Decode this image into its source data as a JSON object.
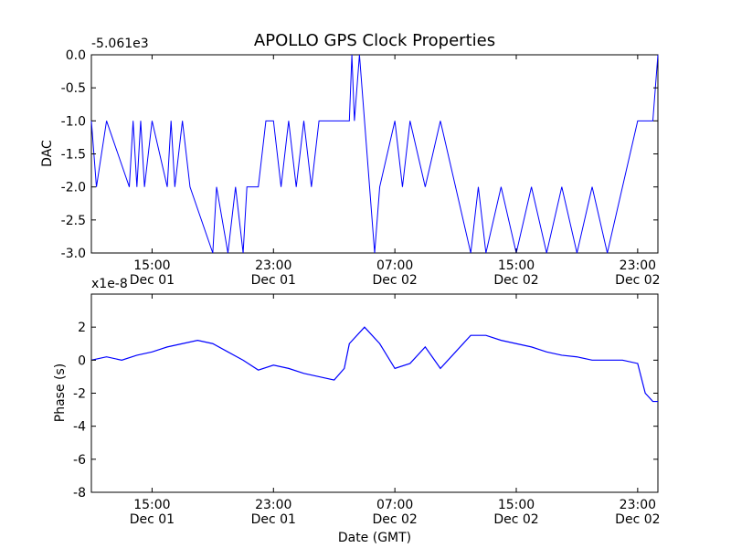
{
  "chart_data": {
    "title": "APOLLO GPS Clock Properties",
    "xlabel": "Date (GMT)",
    "x_range": [
      "2011-12-01 11:00",
      "2011-12-03 00:20"
    ],
    "x_ticks": [
      {
        "t": "2011-12-01 15:00",
        "label_time": "15:00",
        "label_date": "Dec 01"
      },
      {
        "t": "2011-12-01 23:00",
        "label_time": "23:00",
        "label_date": "Dec 01"
      },
      {
        "t": "2011-12-02 07:00",
        "label_time": "07:00",
        "label_date": "Dec 02"
      },
      {
        "t": "2011-12-02 15:00",
        "label_time": "15:00",
        "label_date": "Dec 02"
      },
      {
        "t": "2011-12-02 23:00",
        "label_time": "23:00",
        "label_date": "Dec 02"
      }
    ],
    "panels": [
      {
        "type": "line",
        "ylabel": "DAC",
        "offset_label": "-5.061e3",
        "ylim": [
          -3.0,
          0.0
        ],
        "yticks": [
          0.0,
          -0.5,
          -1.0,
          -1.5,
          -2.0,
          -2.5,
          -3.0
        ],
        "ytick_labels": [
          "0.0",
          "-0.5",
          "-1.0",
          "-1.5",
          "-2.0",
          "-2.5",
          "-3.0"
        ],
        "series": [
          {
            "color": "#0000ff",
            "points": [
              [
                "2011-12-01 11:00",
                -1.0
              ],
              [
                "2011-12-01 11:20",
                -2.0
              ],
              [
                "2011-12-01 12:00",
                -1.0
              ],
              [
                "2011-12-01 13:30",
                -2.0
              ],
              [
                "2011-12-01 13:45",
                -1.0
              ],
              [
                "2011-12-01 14:00",
                -2.0
              ],
              [
                "2011-12-01 14:15",
                -1.0
              ],
              [
                "2011-12-01 14:30",
                -2.0
              ],
              [
                "2011-12-01 15:00",
                -1.0
              ],
              [
                "2011-12-01 16:00",
                -2.0
              ],
              [
                "2011-12-01 16:15",
                -1.0
              ],
              [
                "2011-12-01 16:30",
                -2.0
              ],
              [
                "2011-12-01 17:00",
                -1.0
              ],
              [
                "2011-12-01 17:30",
                -2.0
              ],
              [
                "2011-12-01 19:00",
                -3.0
              ],
              [
                "2011-12-01 19:15",
                -2.0
              ],
              [
                "2011-12-01 20:00",
                -3.0
              ],
              [
                "2011-12-01 20:30",
                -2.0
              ],
              [
                "2011-12-01 21:00",
                -3.0
              ],
              [
                "2011-12-01 21:15",
                -2.0
              ],
              [
                "2011-12-01 22:00",
                -2.0
              ],
              [
                "2011-12-01 22:30",
                -1.0
              ],
              [
                "2011-12-01 23:00",
                -1.0
              ],
              [
                "2011-12-01 23:30",
                -2.0
              ],
              [
                "2011-12-02 00:00",
                -1.0
              ],
              [
                "2011-12-02 00:30",
                -2.0
              ],
              [
                "2011-12-02 01:00",
                -1.0
              ],
              [
                "2011-12-02 01:30",
                -2.0
              ],
              [
                "2011-12-02 02:00",
                -1.0
              ],
              [
                "2011-12-02 03:00",
                -1.0
              ],
              [
                "2011-12-02 04:00",
                -1.0
              ],
              [
                "2011-12-02 04:10",
                0.0
              ],
              [
                "2011-12-02 04:20",
                -1.0
              ],
              [
                "2011-12-02 04:40",
                0.0
              ],
              [
                "2011-12-02 05:00",
                -1.0
              ],
              [
                "2011-12-02 05:20",
                -2.0
              ],
              [
                "2011-12-02 05:40",
                -3.0
              ],
              [
                "2011-12-02 06:00",
                -2.0
              ],
              [
                "2011-12-02 07:00",
                -1.0
              ],
              [
                "2011-12-02 07:30",
                -2.0
              ],
              [
                "2011-12-02 08:00",
                -1.0
              ],
              [
                "2011-12-02 09:00",
                -2.0
              ],
              [
                "2011-12-02 10:00",
                -1.0
              ],
              [
                "2011-12-02 11:00",
                -2.0
              ],
              [
                "2011-12-02 12:00",
                -3.0
              ],
              [
                "2011-12-02 12:30",
                -2.0
              ],
              [
                "2011-12-02 13:00",
                -3.0
              ],
              [
                "2011-12-02 14:00",
                -2.0
              ],
              [
                "2011-12-02 15:00",
                -3.0
              ],
              [
                "2011-12-02 16:00",
                -2.0
              ],
              [
                "2011-12-02 17:00",
                -3.0
              ],
              [
                "2011-12-02 18:00",
                -2.0
              ],
              [
                "2011-12-02 19:00",
                -3.0
              ],
              [
                "2011-12-02 20:00",
                -2.0
              ],
              [
                "2011-12-02 21:00",
                -3.0
              ],
              [
                "2011-12-02 22:00",
                -2.0
              ],
              [
                "2011-12-02 23:00",
                -1.0
              ],
              [
                "2011-12-03 00:00",
                -1.0
              ],
              [
                "2011-12-03 00:20",
                0.0
              ]
            ]
          }
        ]
      },
      {
        "type": "line",
        "ylabel": "Phase (s)",
        "offset_label": "x1e-8",
        "ylim": [
          -8,
          4
        ],
        "yticks": [
          2,
          0,
          -2,
          -4,
          -6,
          -8
        ],
        "ytick_labels": [
          "2",
          "0",
          "-2",
          "-4",
          "-6",
          "-8"
        ],
        "series": [
          {
            "color": "#0000ff",
            "points": [
              [
                "2011-12-01 11:00",
                0.0
              ],
              [
                "2011-12-01 12:00",
                0.2
              ],
              [
                "2011-12-01 13:00",
                0.0
              ],
              [
                "2011-12-01 14:00",
                0.3
              ],
              [
                "2011-12-01 15:00",
                0.5
              ],
              [
                "2011-12-01 16:00",
                0.8
              ],
              [
                "2011-12-01 17:00",
                1.0
              ],
              [
                "2011-12-01 18:00",
                1.2
              ],
              [
                "2011-12-01 19:00",
                1.0
              ],
              [
                "2011-12-01 20:00",
                0.5
              ],
              [
                "2011-12-01 21:00",
                0.0
              ],
              [
                "2011-12-01 22:00",
                -0.6
              ],
              [
                "2011-12-01 23:00",
                -0.3
              ],
              [
                "2011-12-02 00:00",
                -0.5
              ],
              [
                "2011-12-02 01:00",
                -0.8
              ],
              [
                "2011-12-02 02:00",
                -1.0
              ],
              [
                "2011-12-02 03:00",
                -1.2
              ],
              [
                "2011-12-02 03:40",
                -0.5
              ],
              [
                "2011-12-02 04:00",
                1.0
              ],
              [
                "2011-12-02 05:00",
                2.0
              ],
              [
                "2011-12-02 06:00",
                1.0
              ],
              [
                "2011-12-02 07:00",
                -0.5
              ],
              [
                "2011-12-02 08:00",
                -0.2
              ],
              [
                "2011-12-02 09:00",
                0.8
              ],
              [
                "2011-12-02 10:00",
                -0.5
              ],
              [
                "2011-12-02 11:00",
                0.5
              ],
              [
                "2011-12-02 12:00",
                1.5
              ],
              [
                "2011-12-02 13:00",
                1.5
              ],
              [
                "2011-12-02 14:00",
                1.2
              ],
              [
                "2011-12-02 15:00",
                1.0
              ],
              [
                "2011-12-02 16:00",
                0.8
              ],
              [
                "2011-12-02 17:00",
                0.5
              ],
              [
                "2011-12-02 18:00",
                0.3
              ],
              [
                "2011-12-02 19:00",
                0.2
              ],
              [
                "2011-12-02 20:00",
                0.0
              ],
              [
                "2011-12-02 21:00",
                0.0
              ],
              [
                "2011-12-02 22:00",
                0.0
              ],
              [
                "2011-12-02 23:00",
                -0.2
              ],
              [
                "2011-12-02 23:30",
                -2.0
              ],
              [
                "2011-12-03 00:00",
                -2.5
              ],
              [
                "2011-12-03 00:20",
                -2.5
              ]
            ]
          }
        ]
      }
    ]
  }
}
